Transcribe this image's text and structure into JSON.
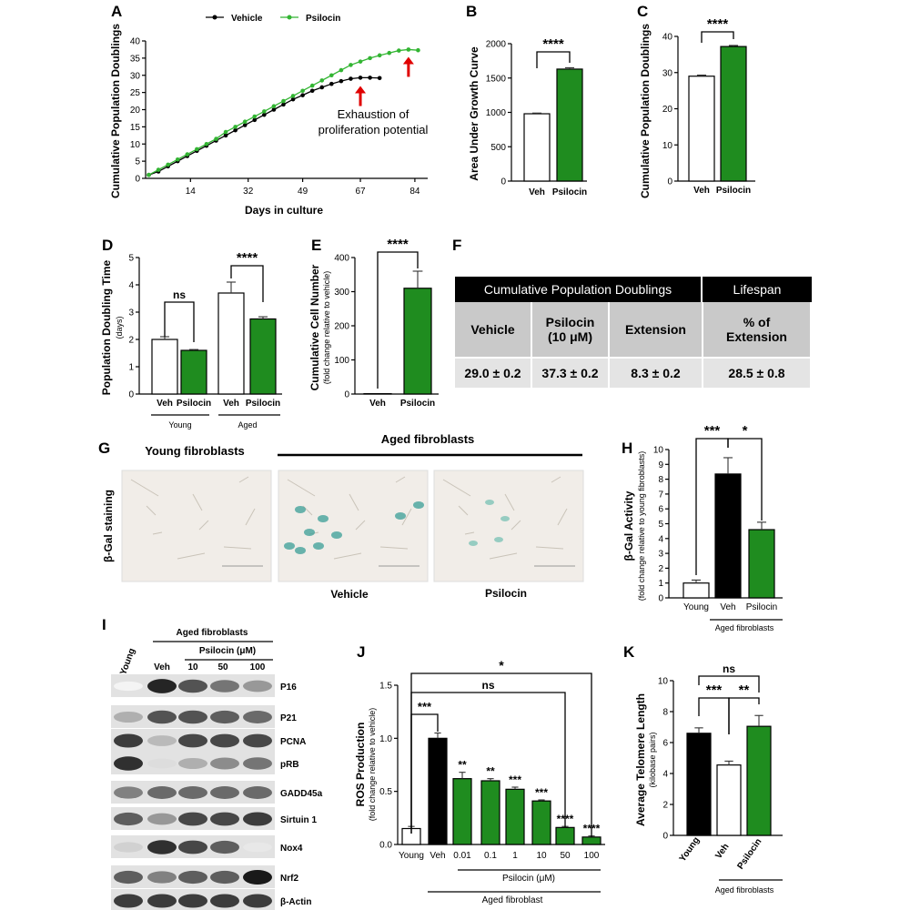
{
  "colors": {
    "vehicle": "#000000",
    "psilocin": "#1f8c1f",
    "green_line": "#33b533",
    "arrow": "#e00000",
    "white_bar": "#ffffff"
  },
  "panel_labels": {
    "A": "A",
    "B": "B",
    "C": "C",
    "D": "D",
    "E": "E",
    "F": "F",
    "G": "G",
    "H": "H",
    "I": "I",
    "J": "J",
    "K": "K"
  },
  "chart_data": [
    {
      "panel": "A",
      "type": "line",
      "xlabel": "Days in culture",
      "ylabel": "Cumulative Population Doublings",
      "xticks": [
        14,
        32,
        49,
        67,
        84
      ],
      "yticks": [
        0,
        5,
        10,
        15,
        20,
        25,
        30,
        35,
        40
      ],
      "xlim": [
        0,
        88
      ],
      "ylim": [
        0,
        40
      ],
      "legend": [
        "Vehicle",
        "Psilocin"
      ],
      "legend_position": "top",
      "annotation": [
        "Exhaustion of",
        "proliferation potential"
      ],
      "series": [
        {
          "name": "Vehicle",
          "x": [
            1,
            4,
            7,
            10,
            13,
            16,
            19,
            22,
            25,
            28,
            31,
            34,
            37,
            40,
            43,
            46,
            49,
            52,
            55,
            58,
            61,
            64,
            67,
            70,
            73
          ],
          "y": [
            1.0,
            2.0,
            3.5,
            5.0,
            6.5,
            8.0,
            9.5,
            11.0,
            12.5,
            14.0,
            15.5,
            17.0,
            18.5,
            20.0,
            21.5,
            23.0,
            24.2,
            25.5,
            26.5,
            27.5,
            28.3,
            29.0,
            29.3,
            29.3,
            29.2
          ]
        },
        {
          "name": "Psilocin",
          "x": [
            1,
            4,
            7,
            10,
            13,
            16,
            19,
            22,
            25,
            28,
            31,
            34,
            37,
            40,
            43,
            46,
            49,
            52,
            55,
            58,
            61,
            64,
            67,
            70,
            73,
            76,
            79,
            82,
            85
          ],
          "y": [
            1.0,
            2.5,
            4.0,
            5.5,
            7.0,
            8.5,
            10.0,
            11.5,
            13.5,
            15.0,
            16.5,
            18.0,
            19.5,
            21.0,
            22.5,
            24.0,
            25.5,
            27.0,
            28.5,
            30.0,
            31.5,
            33.0,
            34.0,
            35.0,
            35.8,
            36.5,
            37.2,
            37.5,
            37.3
          ]
        }
      ],
      "arrows_at": [
        {
          "x": 67,
          "y": 29
        },
        {
          "x": 82,
          "y": 37.5
        }
      ]
    },
    {
      "panel": "B",
      "type": "bar",
      "ylabel": "Area Under Growth Curve",
      "categories": [
        "Veh",
        "Psilocin"
      ],
      "values": [
        980,
        1630
      ],
      "errors": [
        10,
        20
      ],
      "ylim": [
        0,
        2000
      ],
      "yticks": [
        0,
        500,
        1000,
        1500,
        2000
      ],
      "significance": "****"
    },
    {
      "panel": "C",
      "type": "bar",
      "ylabel": "Cumulative Population Doublings",
      "categories": [
        "Veh",
        "Psilocin"
      ],
      "values": [
        29,
        37.2
      ],
      "errors": [
        0.3,
        0.3
      ],
      "ylim": [
        0,
        40
      ],
      "yticks": [
        0,
        10,
        20,
        30,
        40
      ],
      "significance": "****"
    },
    {
      "panel": "D",
      "type": "bar",
      "ylabel": "Population Doubling Time",
      "ylabel_sub": "(days)",
      "categories": [
        "Veh",
        "Psilocin",
        "Veh",
        "Psilocin"
      ],
      "groups": [
        "Young",
        "Aged"
      ],
      "values": [
        2.0,
        1.6,
        3.7,
        2.75
      ],
      "errors": [
        0.1,
        0.03,
        0.4,
        0.08
      ],
      "ylim": [
        0,
        5
      ],
      "yticks": [
        0,
        1,
        2,
        3,
        4,
        5
      ],
      "significance": [
        "ns",
        "****"
      ]
    },
    {
      "panel": "E",
      "type": "bar",
      "ylabel": "Cumulative Cell Number",
      "ylabel_sub": "(fold change relative to vehicle)",
      "categories": [
        "Veh",
        "Psilocin"
      ],
      "values": [
        1,
        310
      ],
      "errors": [
        0,
        50
      ],
      "ylim": [
        0,
        400
      ],
      "yticks": [
        0,
        100,
        200,
        300,
        400
      ],
      "significance": "****"
    },
    {
      "panel": "H",
      "type": "bar",
      "ylabel": "β-Gal Activity",
      "ylabel_sub": "(fold change relative to young fibroblasts)",
      "categories": [
        "Young",
        "Veh",
        "Psilocin"
      ],
      "group": "Aged fibroblasts",
      "values": [
        1.0,
        8.35,
        4.6
      ],
      "errors": [
        0.2,
        1.1,
        0.5
      ],
      "ylim": [
        0,
        10
      ],
      "yticks": [
        0,
        1,
        2,
        3,
        4,
        5,
        6,
        7,
        8,
        9,
        10
      ],
      "significance": [
        "***",
        "*"
      ]
    },
    {
      "panel": "J",
      "type": "bar",
      "ylabel": "ROS Production",
      "ylabel_sub": "(fold change relative to vehicle)",
      "categories": [
        "Young",
        "Veh",
        "0.01",
        "0.1",
        "1",
        "10",
        "50",
        "100"
      ],
      "group_label": "Psilocin (μM)",
      "group": "Aged fibroblast",
      "values": [
        0.15,
        1.0,
        0.62,
        0.6,
        0.52,
        0.41,
        0.16,
        0.07
      ],
      "errors": [
        0.02,
        0.05,
        0.06,
        0.02,
        0.02,
        0.01,
        0.01,
        0.01
      ],
      "bar_stars": [
        "",
        "",
        "**",
        "**",
        "***",
        "***",
        "****",
        "****"
      ],
      "ylim": [
        0,
        1.5
      ],
      "yticks": [
        0.0,
        0.5,
        1.0,
        1.5
      ],
      "significance": [
        "***",
        "ns",
        "*"
      ]
    },
    {
      "panel": "K",
      "type": "bar",
      "ylabel": "Average Telomere Length",
      "ylabel_sub": "(kilobase pairs)",
      "categories": [
        "Young",
        "Veh",
        "Psilocin"
      ],
      "group": "Aged fibroblasts",
      "values": [
        6.6,
        4.55,
        7.05
      ],
      "errors": [
        0.35,
        0.25,
        0.7
      ],
      "ylim": [
        0,
        10
      ],
      "yticks": [
        0,
        2,
        4,
        6,
        8,
        10
      ],
      "significance": [
        "***",
        "**",
        "ns"
      ]
    }
  ],
  "table_F": {
    "header1": "Cumulative Population Doublings",
    "header2": "Lifespan",
    "cols": [
      "Vehicle",
      "Psilocin\n(10 μM)",
      "Extension",
      "% of\nExtension"
    ],
    "vals": [
      "29.0 ± 0.2",
      "37.3 ± 0.2",
      "8.3 ± 0.2",
      "28.5 ± 0.8"
    ]
  },
  "panel_G": {
    "young": "Young fibroblasts",
    "aged": "Aged fibroblasts",
    "row": "β-Gal staining",
    "veh": "Vehicle",
    "psi": "Psilocin"
  },
  "panel_I": {
    "aged": "Aged fibroblasts",
    "psilocin": "Psilocin (μM)",
    "young": "Young",
    "lanes": [
      "Veh",
      "10",
      "50",
      "100"
    ],
    "proteins": [
      "P16",
      "P21",
      "PCNA",
      "pRB",
      "GADD45a",
      "Sirtuin 1",
      "Nox4",
      "Nrf2",
      "β-Actin"
    ],
    "intensities": [
      [
        0.05,
        0.95,
        0.75,
        0.6,
        0.45
      ],
      [
        0.35,
        0.75,
        0.75,
        0.7,
        0.65
      ],
      [
        0.85,
        0.3,
        0.8,
        0.8,
        0.8
      ],
      [
        0.9,
        0.15,
        0.35,
        0.5,
        0.6
      ],
      [
        0.55,
        0.65,
        0.65,
        0.65,
        0.65
      ],
      [
        0.7,
        0.45,
        0.8,
        0.8,
        0.85
      ],
      [
        0.2,
        0.9,
        0.8,
        0.7,
        0.1
      ],
      [
        0.7,
        0.55,
        0.7,
        0.7,
        1.0
      ],
      [
        0.85,
        0.85,
        0.85,
        0.85,
        0.85
      ]
    ]
  }
}
